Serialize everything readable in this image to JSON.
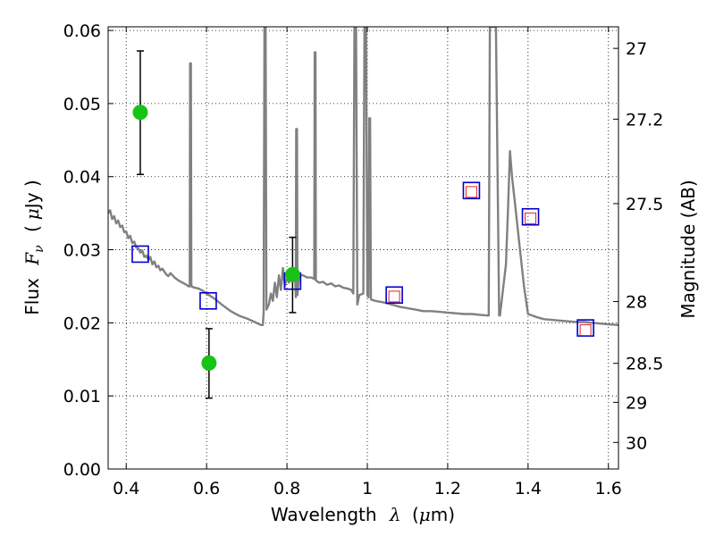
{
  "chart_data": {
    "type": "scatter",
    "xlabel": {
      "prefix": "Wavelength",
      "math": "λ",
      "open": "(",
      "unit_math": "μ",
      "unit": "m)"
    },
    "ylabel": {
      "prefix": "Flux",
      "math": "F",
      "math_sub": "ν",
      "open": "(",
      "unit_math": "μ",
      "unit": "Jy )"
    },
    "y2label": "Magnitude (AB)",
    "xlim": [
      0.355,
      1.625
    ],
    "ylim": [
      0.0,
      0.0605
    ],
    "grid": true,
    "xticks": [
      {
        "v": 0.4,
        "label": "0.4"
      },
      {
        "v": 0.6,
        "label": "0.6"
      },
      {
        "v": 0.8,
        "label": "0.8"
      },
      {
        "v": 1.0,
        "label": "1"
      },
      {
        "v": 1.2,
        "label": "1.2"
      },
      {
        "v": 1.4,
        "label": "1.4"
      },
      {
        "v": 1.6,
        "label": "1.6"
      }
    ],
    "yticks": [
      {
        "v": 0.0,
        "label": "0.00"
      },
      {
        "v": 0.01,
        "label": "0.01"
      },
      {
        "v": 0.02,
        "label": "0.02"
      },
      {
        "v": 0.03,
        "label": "0.03"
      },
      {
        "v": 0.04,
        "label": "0.04"
      },
      {
        "v": 0.05,
        "label": "0.05"
      },
      {
        "v": 0.06,
        "label": "0.06"
      }
    ],
    "y2ticks": [
      {
        "mag": 27,
        "label": "27"
      },
      {
        "mag": 27.2,
        "label": "27.2"
      },
      {
        "mag": 27.5,
        "label": "27.5"
      },
      {
        "mag": 28,
        "label": "28"
      },
      {
        "mag": 28.5,
        "label": "28.5"
      },
      {
        "mag": 29,
        "label": "29"
      },
      {
        "mag": 30,
        "label": "30"
      }
    ],
    "series": [
      {
        "kind": "line",
        "color": "#808080",
        "points": [
          [
            0.355,
            0.035
          ],
          [
            0.36,
            0.0354
          ],
          [
            0.365,
            0.0342
          ],
          [
            0.37,
            0.0346
          ],
          [
            0.375,
            0.0336
          ],
          [
            0.38,
            0.034
          ],
          [
            0.385,
            0.0331
          ],
          [
            0.39,
            0.0333
          ],
          [
            0.395,
            0.0324
          ],
          [
            0.4,
            0.0325
          ],
          [
            0.405,
            0.0316
          ],
          [
            0.41,
            0.0319
          ],
          [
            0.415,
            0.0309
          ],
          [
            0.42,
            0.0311
          ],
          [
            0.425,
            0.0303
          ],
          [
            0.43,
            0.0302
          ],
          [
            0.435,
            0.0296
          ],
          [
            0.44,
            0.0299
          ],
          [
            0.445,
            0.029
          ],
          [
            0.45,
            0.0292
          ],
          [
            0.455,
            0.0286
          ],
          [
            0.46,
            0.029
          ],
          [
            0.465,
            0.028
          ],
          [
            0.47,
            0.0284
          ],
          [
            0.475,
            0.0276
          ],
          [
            0.48,
            0.0278
          ],
          [
            0.485,
            0.0272
          ],
          [
            0.49,
            0.0274
          ],
          [
            0.5,
            0.0266
          ],
          [
            0.505,
            0.0264
          ],
          [
            0.51,
            0.0268
          ],
          [
            0.52,
            0.0262
          ],
          [
            0.53,
            0.0258
          ],
          [
            0.54,
            0.0255
          ],
          [
            0.55,
            0.0252
          ],
          [
            0.555,
            0.025
          ],
          [
            0.558,
            0.025
          ],
          [
            0.559,
            0.0555
          ],
          [
            0.561,
            0.0555
          ],
          [
            0.562,
            0.025
          ],
          [
            0.57,
            0.0248
          ],
          [
            0.58,
            0.0247
          ],
          [
            0.59,
            0.0244
          ],
          [
            0.6,
            0.024
          ],
          [
            0.62,
            0.0233
          ],
          [
            0.64,
            0.0224
          ],
          [
            0.66,
            0.0216
          ],
          [
            0.68,
            0.021
          ],
          [
            0.7,
            0.0206
          ],
          [
            0.72,
            0.0201
          ],
          [
            0.735,
            0.0197
          ],
          [
            0.74,
            0.0197
          ],
          [
            0.742,
            0.0215
          ],
          [
            0.744,
            0.0605
          ],
          [
            0.747,
            0.0605
          ],
          [
            0.749,
            0.0218
          ],
          [
            0.755,
            0.0225
          ],
          [
            0.76,
            0.024
          ],
          [
            0.765,
            0.023
          ],
          [
            0.77,
            0.0255
          ],
          [
            0.775,
            0.0235
          ],
          [
            0.78,
            0.0265
          ],
          [
            0.785,
            0.0245
          ],
          [
            0.79,
            0.0275
          ],
          [
            0.795,
            0.025
          ],
          [
            0.8,
            0.0262
          ],
          [
            0.805,
            0.0255
          ],
          [
            0.81,
            0.0272
          ],
          [
            0.815,
            0.0258
          ],
          [
            0.82,
            0.0268
          ],
          [
            0.822,
            0.0235
          ],
          [
            0.823,
            0.0465
          ],
          [
            0.825,
            0.0465
          ],
          [
            0.826,
            0.0238
          ],
          [
            0.83,
            0.0265
          ],
          [
            0.84,
            0.0265
          ],
          [
            0.85,
            0.0262
          ],
          [
            0.86,
            0.0262
          ],
          [
            0.868,
            0.026
          ],
          [
            0.869,
            0.057
          ],
          [
            0.871,
            0.057
          ],
          [
            0.872,
            0.0258
          ],
          [
            0.88,
            0.0255
          ],
          [
            0.89,
            0.0256
          ],
          [
            0.9,
            0.0252
          ],
          [
            0.91,
            0.0254
          ],
          [
            0.92,
            0.025
          ],
          [
            0.93,
            0.0251
          ],
          [
            0.94,
            0.0248
          ],
          [
            0.95,
            0.0247
          ],
          [
            0.96,
            0.0245
          ],
          [
            0.965,
            0.024
          ],
          [
            0.968,
            0.0605
          ],
          [
            0.972,
            0.0605
          ],
          [
            0.975,
            0.0225
          ],
          [
            0.98,
            0.0238
          ],
          [
            0.99,
            0.024
          ],
          [
            0.993,
            0.0605
          ],
          [
            0.997,
            0.0605
          ],
          [
            1.0,
            0.0238
          ],
          [
            1.003,
            0.0235
          ],
          [
            1.005,
            0.048
          ],
          [
            1.007,
            0.048
          ],
          [
            1.009,
            0.0232
          ],
          [
            1.02,
            0.023
          ],
          [
            1.04,
            0.0228
          ],
          [
            1.06,
            0.0225
          ],
          [
            1.08,
            0.0222
          ],
          [
            1.1,
            0.022
          ],
          [
            1.12,
            0.0218
          ],
          [
            1.14,
            0.0216
          ],
          [
            1.16,
            0.0216
          ],
          [
            1.18,
            0.0215
          ],
          [
            1.2,
            0.0214
          ],
          [
            1.22,
            0.0213
          ],
          [
            1.24,
            0.0212
          ],
          [
            1.26,
            0.0212
          ],
          [
            1.28,
            0.0211
          ],
          [
            1.3,
            0.021
          ],
          [
            1.302,
            0.021
          ],
          [
            1.305,
            0.0605
          ],
          [
            1.315,
            0.0605
          ],
          [
            1.32,
            0.0605
          ],
          [
            1.328,
            0.021
          ],
          [
            1.33,
            0.021
          ],
          [
            1.345,
            0.028
          ],
          [
            1.35,
            0.0355
          ],
          [
            1.355,
            0.0435
          ],
          [
            1.36,
            0.04
          ],
          [
            1.37,
            0.035
          ],
          [
            1.38,
            0.03
          ],
          [
            1.39,
            0.025
          ],
          [
            1.4,
            0.0212
          ],
          [
            1.42,
            0.0208
          ],
          [
            1.44,
            0.0205
          ],
          [
            1.46,
            0.0204
          ],
          [
            1.48,
            0.0203
          ],
          [
            1.5,
            0.0202
          ],
          [
            1.52,
            0.0201
          ],
          [
            1.54,
            0.0201
          ],
          [
            1.56,
            0.02
          ],
          [
            1.58,
            0.0199
          ],
          [
            1.6,
            0.0198
          ],
          [
            1.625,
            0.0197
          ]
        ]
      },
      {
        "kind": "open-square",
        "color": "#0000cc",
        "points": [
          [
            0.435,
            0.0294
          ],
          [
            0.604,
            0.023
          ],
          [
            0.814,
            0.0257
          ],
          [
            1.067,
            0.0238
          ],
          [
            1.259,
            0.0381
          ],
          [
            1.406,
            0.0345
          ],
          [
            1.543,
            0.0193
          ]
        ]
      },
      {
        "kind": "open-square-small",
        "color": "#e8202a",
        "points": [
          [
            1.067,
            0.0236
          ],
          [
            1.259,
            0.0379
          ],
          [
            1.406,
            0.0343
          ],
          [
            1.543,
            0.019
          ]
        ]
      },
      {
        "kind": "point-errorbar",
        "color": "#17c317",
        "points": [
          {
            "x": 0.435,
            "y": 0.0488,
            "lo": 0.0403,
            "hi": 0.0572
          },
          {
            "x": 0.606,
            "y": 0.0145,
            "lo": 0.0097,
            "hi": 0.0192
          },
          {
            "x": 0.814,
            "y": 0.0266,
            "lo": 0.0214,
            "hi": 0.0317
          }
        ]
      }
    ]
  }
}
